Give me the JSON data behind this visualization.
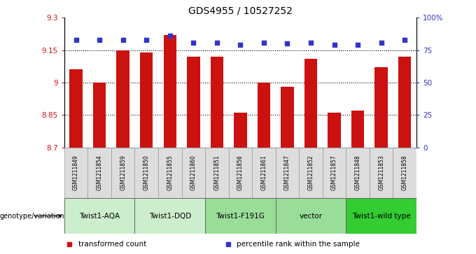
{
  "title": "GDS4955 / 10527252",
  "samples": [
    "GSM1211849",
    "GSM1211854",
    "GSM1211859",
    "GSM1211850",
    "GSM1211855",
    "GSM1211860",
    "GSM1211851",
    "GSM1211856",
    "GSM1211861",
    "GSM1211847",
    "GSM1211852",
    "GSM1211857",
    "GSM1211848",
    "GSM1211853",
    "GSM1211858"
  ],
  "bar_values": [
    9.06,
    9.0,
    9.15,
    9.14,
    9.22,
    9.12,
    9.12,
    8.86,
    9.0,
    8.98,
    9.11,
    8.86,
    8.87,
    9.07,
    9.12
  ],
  "percentile_values": [
    83,
    83,
    83,
    83,
    86,
    81,
    81,
    79,
    81,
    80,
    81,
    79,
    79,
    81,
    83
  ],
  "ylim_left": [
    8.7,
    9.3
  ],
  "ylim_right": [
    0,
    100
  ],
  "yticks_left": [
    8.7,
    8.85,
    9.0,
    9.15,
    9.3
  ],
  "ytick_labels_left": [
    "8.7",
    "8.85",
    "9",
    "9.15",
    "9.3"
  ],
  "yticks_right": [
    0,
    25,
    50,
    75,
    100
  ],
  "ytick_labels_right": [
    "0",
    "25",
    "50",
    "75",
    "100%"
  ],
  "hlines": [
    8.85,
    9.0,
    9.15
  ],
  "bar_color": "#cc1111",
  "percentile_color": "#3333cc",
  "bar_bottom": 8.7,
  "groups": [
    {
      "label": "Twist1-AQA",
      "start": 0,
      "end": 2,
      "color": "#cceecc"
    },
    {
      "label": "Twist1-DQD",
      "start": 3,
      "end": 5,
      "color": "#cceecc"
    },
    {
      "label": "Twist1-F191G",
      "start": 6,
      "end": 8,
      "color": "#99dd99"
    },
    {
      "label": "vector",
      "start": 9,
      "end": 11,
      "color": "#99dd99"
    },
    {
      "label": "Twist1-wild type",
      "start": 12,
      "end": 14,
      "color": "#33cc33"
    }
  ],
  "sample_cell_color": "#dddddd",
  "genotype_label": "genotype/variation",
  "legend_items": [
    {
      "label": "transformed count",
      "color": "#cc1111"
    },
    {
      "label": "percentile rank within the sample",
      "color": "#3333cc"
    }
  ],
  "background_color": "#ffffff",
  "left_tick_color": "#cc1111",
  "right_tick_color": "#3333cc"
}
